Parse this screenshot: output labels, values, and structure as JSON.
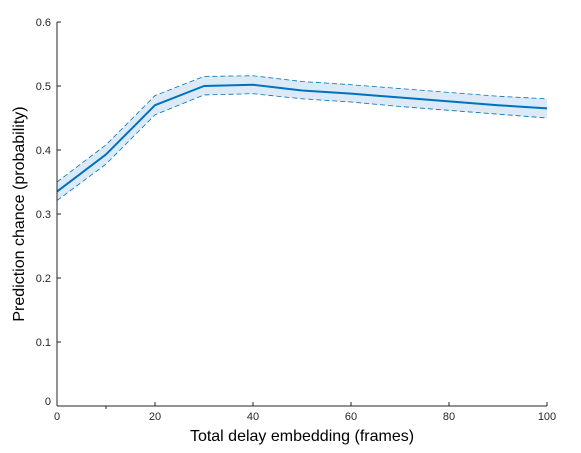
{
  "chart_data": {
    "type": "line",
    "title": "",
    "xlabel": "Total delay embedding (frames)",
    "ylabel": "Prediction chance (probability)",
    "xlim": [
      0,
      100
    ],
    "ylim": [
      0,
      0.6
    ],
    "x_ticks": [
      0,
      20,
      40,
      60,
      80,
      100
    ],
    "x_tick_labels": [
      "0",
      "20",
      "40",
      "60",
      "80",
      "100"
    ],
    "x_minor_ticks": [
      10
    ],
    "y_ticks": [
      0,
      0.1,
      0.2,
      0.3,
      0.4,
      0.5,
      0.6
    ],
    "y_tick_labels": [
      "0",
      "0.1",
      "0.2",
      "0.3",
      "0.4",
      "0.5",
      "0.6"
    ],
    "grid": false,
    "legend": "none",
    "series": [
      {
        "x": [
          0,
          10,
          20,
          30,
          40,
          50,
          60,
          70,
          80,
          90,
          100
        ],
        "mean": [
          0.335,
          0.393,
          0.47,
          0.5,
          0.502,
          0.493,
          0.488,
          0.482,
          0.476,
          0.47,
          0.465
        ],
        "upper": [
          0.35,
          0.408,
          0.485,
          0.515,
          0.516,
          0.507,
          0.502,
          0.496,
          0.49,
          0.484,
          0.48
        ],
        "lower": [
          0.321,
          0.378,
          0.455,
          0.486,
          0.488,
          0.48,
          0.475,
          0.468,
          0.462,
          0.456,
          0.45
        ],
        "line_color": "#0072BD",
        "band_fill": "#dbeaf6"
      }
    ]
  }
}
